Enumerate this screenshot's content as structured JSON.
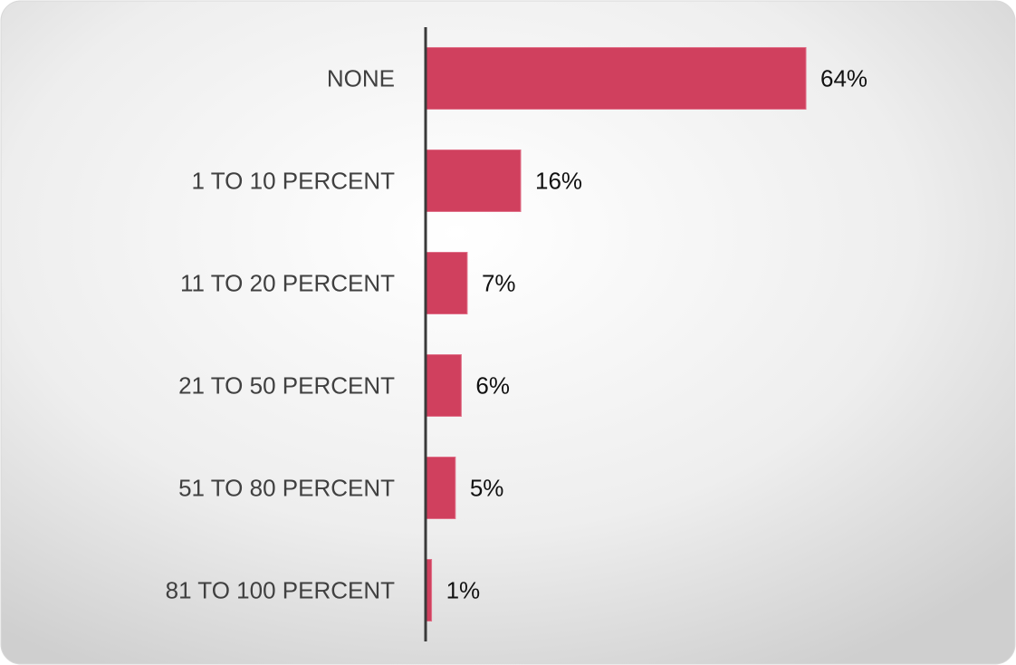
{
  "chart_data": {
    "type": "bar",
    "orientation": "horizontal",
    "categories": [
      "NONE",
      "1 TO 10 PERCENT",
      "11 TO 20 PERCENT",
      "21 TO 50 PERCENT",
      "51 TO 80 PERCENT",
      "81 TO 100 PERCENT"
    ],
    "values": [
      64,
      16,
      7,
      6,
      5,
      1
    ],
    "value_labels": [
      "64%",
      "16%",
      "7%",
      "6%",
      "5%",
      "1%"
    ],
    "color": "#d0405e",
    "xlim": [
      0,
      80
    ],
    "grid": false
  }
}
